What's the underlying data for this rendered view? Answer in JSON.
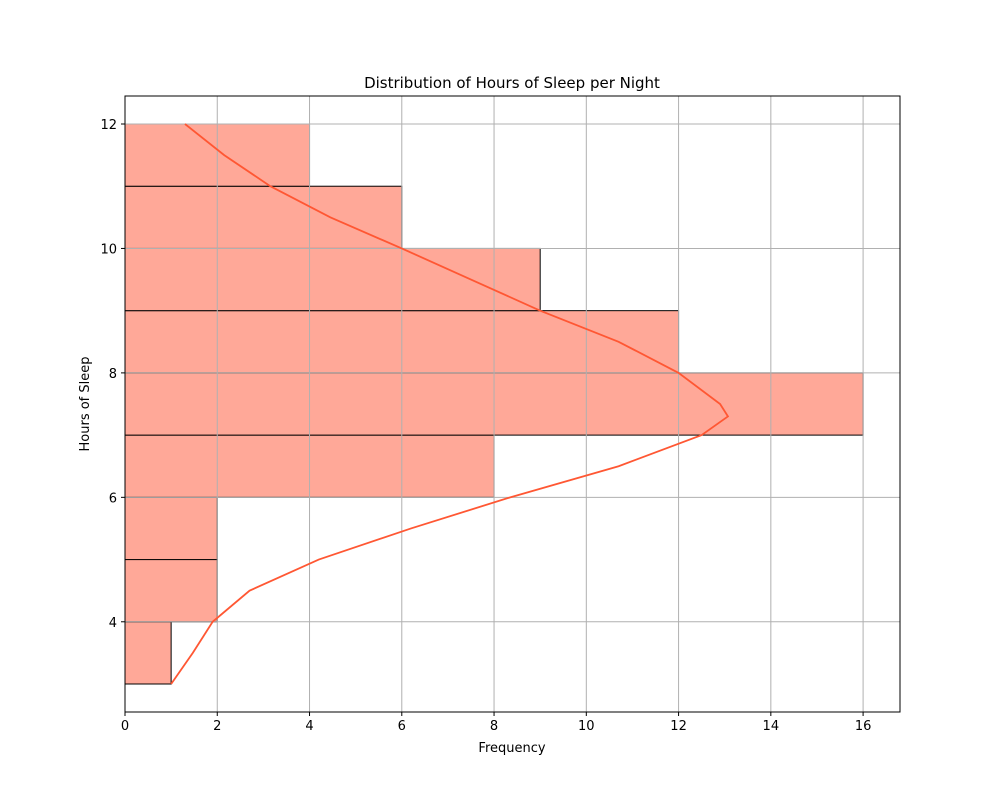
{
  "chart_data": {
    "type": "histogram",
    "orientation": "horizontal",
    "title": "Distribution of Hours of Sleep per Night",
    "xlabel": "Frequency",
    "ylabel": "Hours of Sleep",
    "bins": [
      3,
      4,
      5,
      6,
      7,
      8,
      9,
      10,
      11,
      12
    ],
    "values": [
      1,
      2,
      2,
      8,
      16,
      12,
      9,
      6,
      4
    ],
    "color": "#ffa898",
    "edge_color": "#000000",
    "curve": {
      "color": "#ff5733",
      "hours": [
        3,
        3.5,
        4,
        4.5,
        5,
        5.5,
        6,
        6.5,
        7,
        7.3,
        7.5,
        8,
        8.5,
        9,
        9.5,
        10,
        10.5,
        11,
        11.5,
        12
      ],
      "frequency": [
        1,
        1.47,
        1.9,
        2.7,
        4.2,
        6.2,
        8.35,
        10.7,
        12.5,
        13.07,
        12.9,
        12.0,
        10.7,
        9.0,
        7.5,
        6.0,
        4.45,
        3.15,
        2.15,
        1.3
      ]
    },
    "xlim": [
      0,
      16.8
    ],
    "ylim": [
      2.55,
      12.45
    ],
    "xticks": [
      0,
      2,
      4,
      6,
      8,
      10,
      12,
      14,
      16
    ],
    "yticks": [
      4,
      6,
      8,
      10,
      12
    ],
    "grid": true
  }
}
